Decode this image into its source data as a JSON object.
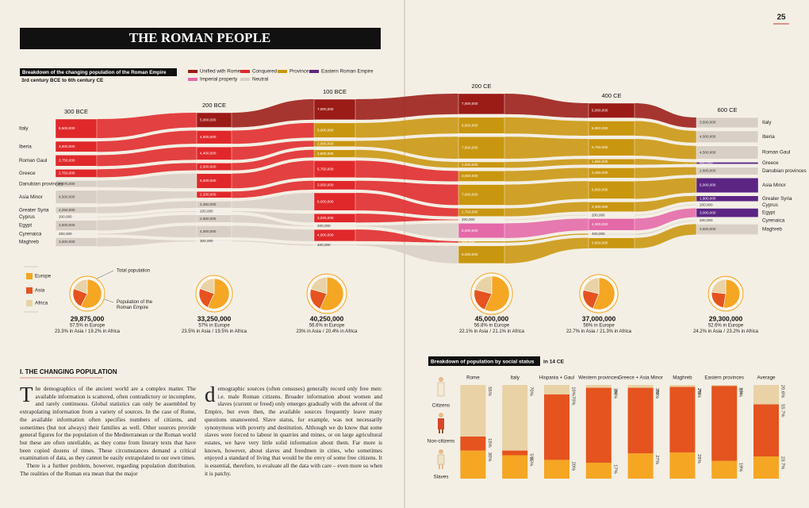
{
  "page_number": "25",
  "title": "THE ROMAN PEOPLE",
  "chart_data": [
    {
      "type": "flow",
      "title": "Breakdown of the changing population of the Roman Empire",
      "subtitle": "3rd century BCE to 6th century CE",
      "legend": [
        {
          "name": "Unified with Rome",
          "color": "#9b1b17"
        },
        {
          "name": "Conquered",
          "color": "#e0282a"
        },
        {
          "name": "Province",
          "color": "#c9960f"
        },
        {
          "name": "Eastern Roman Empire",
          "color": "#5c2483"
        },
        {
          "name": "Imperial property",
          "color": "#e469a8"
        },
        {
          "name": "Neutral",
          "color": "#d8d0c6"
        }
      ],
      "regions": [
        "Italy",
        "Iberia",
        "Roman Gaul",
        "Greece",
        "Danubian provinces",
        "Asia Minor",
        "Greater Syria",
        "Cyprus",
        "Egypt",
        "Cyrenaica",
        "Maghreb"
      ],
      "columns": [
        {
          "name": "300 BCE",
          "values": [
            6500000,
            3600000,
            3750000,
            2750000,
            2275000,
            4500000,
            2250000,
            200000,
            3500000,
            250000,
            3000000
          ],
          "value_labels": [
            "6,500,000",
            "3,600,000",
            "3,750,000",
            "2,750,000",
            "2,275,000",
            "4,500,000",
            "2,250,000",
            "200,000",
            "3,500,000",
            "250,000",
            "3,000,000"
          ],
          "status": [
            1,
            1,
            1,
            1,
            5,
            5,
            5,
            5,
            5,
            5,
            5
          ]
        },
        {
          "name": "200 BCE",
          "values": [
            5000000,
            4500000,
            4400000,
            2500000,
            5000000,
            2200000,
            2350000,
            200000,
            2600000,
            4000000,
            300000
          ],
          "value_labels": [
            "5,000,000",
            "4,500,000",
            "4,400,000",
            "2,500,000",
            "5,000,000",
            "2,200,000",
            "2,350,000",
            "200,000",
            "2,600,000",
            "4,000,000",
            "300,000"
          ],
          "status": [
            0,
            1,
            1,
            1,
            1,
            1,
            5,
            5,
            5,
            5,
            5
          ]
        },
        {
          "name": "100 BCE",
          "values": [
            7000000,
            5000000,
            2000000,
            2600000,
            5750000,
            3050000,
            6000000,
            3025000,
            200000,
            4000000,
            400000
          ],
          "value_labels": [
            "7,000,000",
            "5,000,000",
            "2,000,000",
            "2,600,000",
            "5,750,000",
            "3,050,000",
            "6,000,000",
            "3,025,000",
            "200,000",
            "4,000,000",
            "400,000"
          ],
          "status": [
            0,
            2,
            2,
            2,
            1,
            1,
            1,
            1,
            5,
            1,
            5
          ]
        },
        {
          "name": "200 CE",
          "values": [
            7000000,
            5500000,
            7500000,
            2000000,
            3550000,
            7000000,
            2750000,
            200000,
            5000000,
            500000,
            6000000
          ],
          "value_labels": [
            "7,000,000",
            "5,500,000",
            "7,500,000",
            "2,000,000",
            "3,550,000",
            "7,000,000",
            "2,750,000",
            "200,000",
            "5,000,000",
            "500,000",
            "6,000,000"
          ],
          "status": [
            0,
            2,
            2,
            2,
            2,
            2,
            2,
            5,
            4,
            2,
            2
          ]
        },
        {
          "name": "400 CE",
          "values": [
            5000000,
            5000000,
            5750000,
            1950000,
            3450000,
            6000000,
            3300000,
            200000,
            4000000,
            400000,
            3600000
          ],
          "value_labels": [
            "5,000,000",
            "5,000,000",
            "5,750,000",
            "1,950,000",
            "3,450,000",
            "6,000,000",
            "3,300,000",
            "200,000",
            "4,000,000",
            "400,000",
            "3,600,000"
          ],
          "status": [
            0,
            2,
            2,
            2,
            2,
            2,
            2,
            5,
            4,
            5,
            2
          ]
        },
        {
          "name": "600 CE",
          "values": [
            3500000,
            4000000,
            4500000,
            600000,
            2600000,
            5000000,
            1900000,
            200000,
            3000000,
            200000,
            3600000
          ],
          "value_labels": [
            "3,500,000",
            "4,000,000",
            "4,500,000",
            "600,000",
            "2,600,000",
            "5,000,000",
            "1,900,000",
            "200,000",
            "3,000,000",
            "200,000",
            "3,600,000"
          ],
          "status": [
            5,
            5,
            5,
            3,
            5,
            3,
            3,
            5,
            3,
            5,
            5
          ]
        }
      ]
    },
    {
      "type": "pie",
      "legend": [
        {
          "name": "Europe",
          "color": "#f5a623"
        },
        {
          "name": "Asia",
          "color": "#e5531f"
        },
        {
          "name": "Africa",
          "color": "#e8d2a6"
        }
      ],
      "annotations": [
        "Total population",
        "Population of the Roman Empire"
      ],
      "separator": "/",
      "pies": [
        {
          "total": 29875000,
          "total_label": "29,875,000",
          "values": [
            57.5,
            23.3,
            19.2
          ],
          "value_labels": [
            "57.5% in Europe",
            "23.3% in Asia",
            "19.2% in Africa"
          ]
        },
        {
          "total": 33250000,
          "total_label": "33,250,000",
          "values": [
            57,
            23.5,
            19.5
          ],
          "value_labels": [
            "57% in Europe",
            "23.5% in Asia",
            "19.5% in Africa"
          ]
        },
        {
          "total": 40250000,
          "total_label": "40,250,000",
          "values": [
            56.6,
            23,
            20.4
          ],
          "value_labels": [
            "56.6% in Europe",
            "23% in Asia",
            "20.4% in Africa"
          ]
        },
        {
          "total": 45000000,
          "total_label": "45,000,000",
          "values": [
            56.8,
            22.1,
            21.1
          ],
          "value_labels": [
            "56.8% in Europe",
            "22.1% in Asia",
            "21.1% in Africa"
          ]
        },
        {
          "total": 37000000,
          "total_label": "37,000,000",
          "values": [
            56,
            22.7,
            21.3
          ],
          "value_labels": [
            "56% in Europe",
            "22.7% in Asia",
            "21.3% in Africa"
          ]
        },
        {
          "total": 29300000,
          "total_label": "29,300,000",
          "values": [
            52.6,
            24.2,
            23.2
          ],
          "value_labels": [
            "52.6% in Europe",
            "24.2% in Asia",
            "23.2% in Africa"
          ]
        }
      ]
    },
    {
      "type": "stacked_bar",
      "title": "Breakdown of population by social status",
      "subtitle": "in 14 CE",
      "categories": [
        "Rome",
        "Italy",
        "Hispania + Gaul",
        "Western provinces",
        "Greece + Asia Minor",
        "Maghreb",
        "Eastern provinces",
        "Average"
      ],
      "ylim": [
        0,
        100
      ],
      "series": [
        {
          "name": "Citizens",
          "color": "#e8d2a6",
          "values": [
            55,
            70,
            10,
            3,
            3,
            2,
            1,
            20.6
          ],
          "value_labels": [
            "55%",
            "70%",
            "10%",
            "3%",
            "3%",
            "2%",
            "1%",
            "20.6%"
          ]
        },
        {
          "name": "Non-citizens",
          "color": "#e5531f",
          "values": [
            15,
            5,
            70,
            80,
            70,
            70,
            80,
            55.7
          ],
          "value_labels": [
            "15%",
            "5%",
            "70%",
            "80%",
            "70%",
            "70%",
            "80%",
            "55.7%"
          ]
        },
        {
          "name": "Slaves",
          "color": "#f5a623",
          "values": [
            30,
            25,
            20,
            17,
            27,
            28,
            19,
            23.7
          ],
          "value_labels": [
            "30%",
            "25%",
            "20%",
            "17%",
            "27%",
            "28%",
            "19%",
            "23.7%"
          ]
        }
      ]
    }
  ],
  "article": {
    "heading": "I. THE CHANGING POPULATION",
    "column1": [
      "The demographics of the ancient world are a complex matter. The available information is scattered, often contradictory or incomplete, and rarely continuous. Global statistics can only be assembled by extrapolating information from a variety of sources. In the case of Rome, the available information often specifies numbers of citizens, and sometimes (but not always) their families as well. Other sources provide general figures for the population of the Mediterranean or the Roman world but these are often unreliable, as they come from literary texts that have been copied dozens of times. These circumstances demand a critical examination of data, as they cannot be easily extrapolated to our own times.",
      "There is a further problem, however, regarding population distribution. The realities of the Roman era mean that the major"
    ],
    "column2": [
      "demographic sources (often censuses) generally record only free men: i.e. male Roman citizens. Broader information about women and slaves (current or freed) only emerges gradually with the advent of the Empire, but even then, the available sources frequently leave many questions unanswered. Slave status, for example, was not necessarily synonymous with poverty and destitution. Although we do know that some slaves were forced to labour in quarries and mines, or on large agricultural estates, we have very little solid information about them. Far more is known, however, about slaves and freedmen in cities, who sometimes enjoyed a standard of living that would be the envy of some free citizens. It is essential, therefore, to evaluate all the data with care – even more so when it is patchy."
    ]
  }
}
